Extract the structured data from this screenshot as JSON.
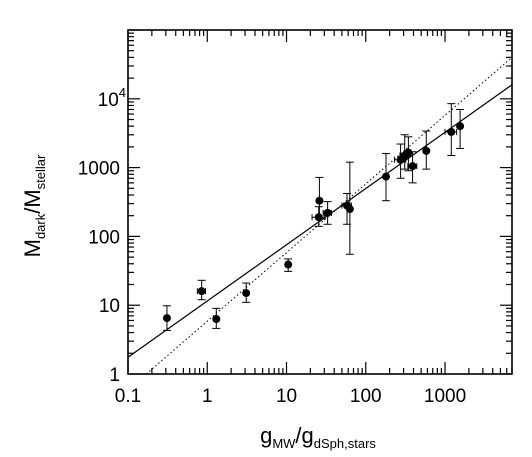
{
  "chart_data": {
    "type": "scatter",
    "title": "",
    "xlabel": {
      "main": "g",
      "sub1": "MW",
      "sep": "/g",
      "sub2": "dSph,stars"
    },
    "ylabel": {
      "main": "M",
      "sub1": "dark",
      "sep": "/M",
      "sub2": "stellar"
    },
    "xscale": "log",
    "yscale": "log",
    "xlim": [
      0.1,
      7000
    ],
    "ylim": [
      1,
      100000
    ],
    "grid": false,
    "legend": "none",
    "x_ticks": [
      {
        "value": 0.1,
        "label": "0.1"
      },
      {
        "value": 1,
        "label": "1"
      },
      {
        "value": 10,
        "label": "10"
      },
      {
        "value": 100,
        "label": "100"
      },
      {
        "value": 1000,
        "label": "1000"
      }
    ],
    "y_ticks": [
      {
        "value": 1,
        "label": "1",
        "sup": ""
      },
      {
        "value": 10,
        "label": "10",
        "sup": ""
      },
      {
        "value": 100,
        "label": "100",
        "sup": ""
      },
      {
        "value": 1000,
        "label": "1000",
        "sup": ""
      },
      {
        "value": 10000,
        "label": "10",
        "sup": "4"
      }
    ],
    "points": [
      {
        "x": 0.31,
        "y": 6.5,
        "y_low": 4.3,
        "y_high": 9.8
      },
      {
        "x": 0.85,
        "y": 16,
        "y_low": 12,
        "y_high": 23,
        "x_low": 0.75,
        "x_high": 0.95
      },
      {
        "x": 1.3,
        "y": 6.3,
        "y_low": 4.6,
        "y_high": 9.0
      },
      {
        "x": 3.1,
        "y": 15,
        "y_low": 11,
        "y_high": 21
      },
      {
        "x": 10.5,
        "y": 39,
        "y_low": 31,
        "y_high": 47
      },
      {
        "x": 25.5,
        "y": 190,
        "y_low": 140,
        "y_high": 270,
        "x_low": 21,
        "x_high": 30
      },
      {
        "x": 26,
        "y": 330,
        "y_low": 190,
        "y_high": 720
      },
      {
        "x": 33,
        "y": 220,
        "y_low": 150,
        "y_high": 320,
        "x_low": 29,
        "x_high": 37
      },
      {
        "x": 58,
        "y": 280,
        "y_low": 150,
        "y_high": 420,
        "x_low": 50,
        "x_high": 66
      },
      {
        "x": 63,
        "y": 250,
        "y_low": 55,
        "y_high": 1200
      },
      {
        "x": 180,
        "y": 740,
        "y_low": 330,
        "y_high": 1600
      },
      {
        "x": 275,
        "y": 1300,
        "y_low": 700,
        "y_high": 2200,
        "x_low": 230,
        "x_high": 320
      },
      {
        "x": 310,
        "y": 1500,
        "y_low": 950,
        "y_high": 3000,
        "x_low": 270,
        "x_high": 350
      },
      {
        "x": 345,
        "y": 1650,
        "y_low": 900,
        "y_high": 2800
      },
      {
        "x": 390,
        "y": 1050,
        "y_low": 600,
        "y_high": 1700,
        "x_low": 340,
        "x_high": 440
      },
      {
        "x": 580,
        "y": 1750,
        "y_low": 950,
        "y_high": 3400
      },
      {
        "x": 1200,
        "y": 3300,
        "y_low": 1500,
        "y_high": 8500,
        "x_low": 1000,
        "x_high": 1400
      },
      {
        "x": 1550,
        "y": 4000,
        "y_low": 1900,
        "y_high": 7000
      }
    ],
    "fit_lines": [
      {
        "style": "solid",
        "x": [
          0.1,
          7000
        ],
        "y": [
          1.75,
          16000
        ]
      },
      {
        "style": "dotted",
        "x": [
          0.17,
          7000
        ],
        "y": [
          1.0,
          40000
        ]
      }
    ]
  }
}
